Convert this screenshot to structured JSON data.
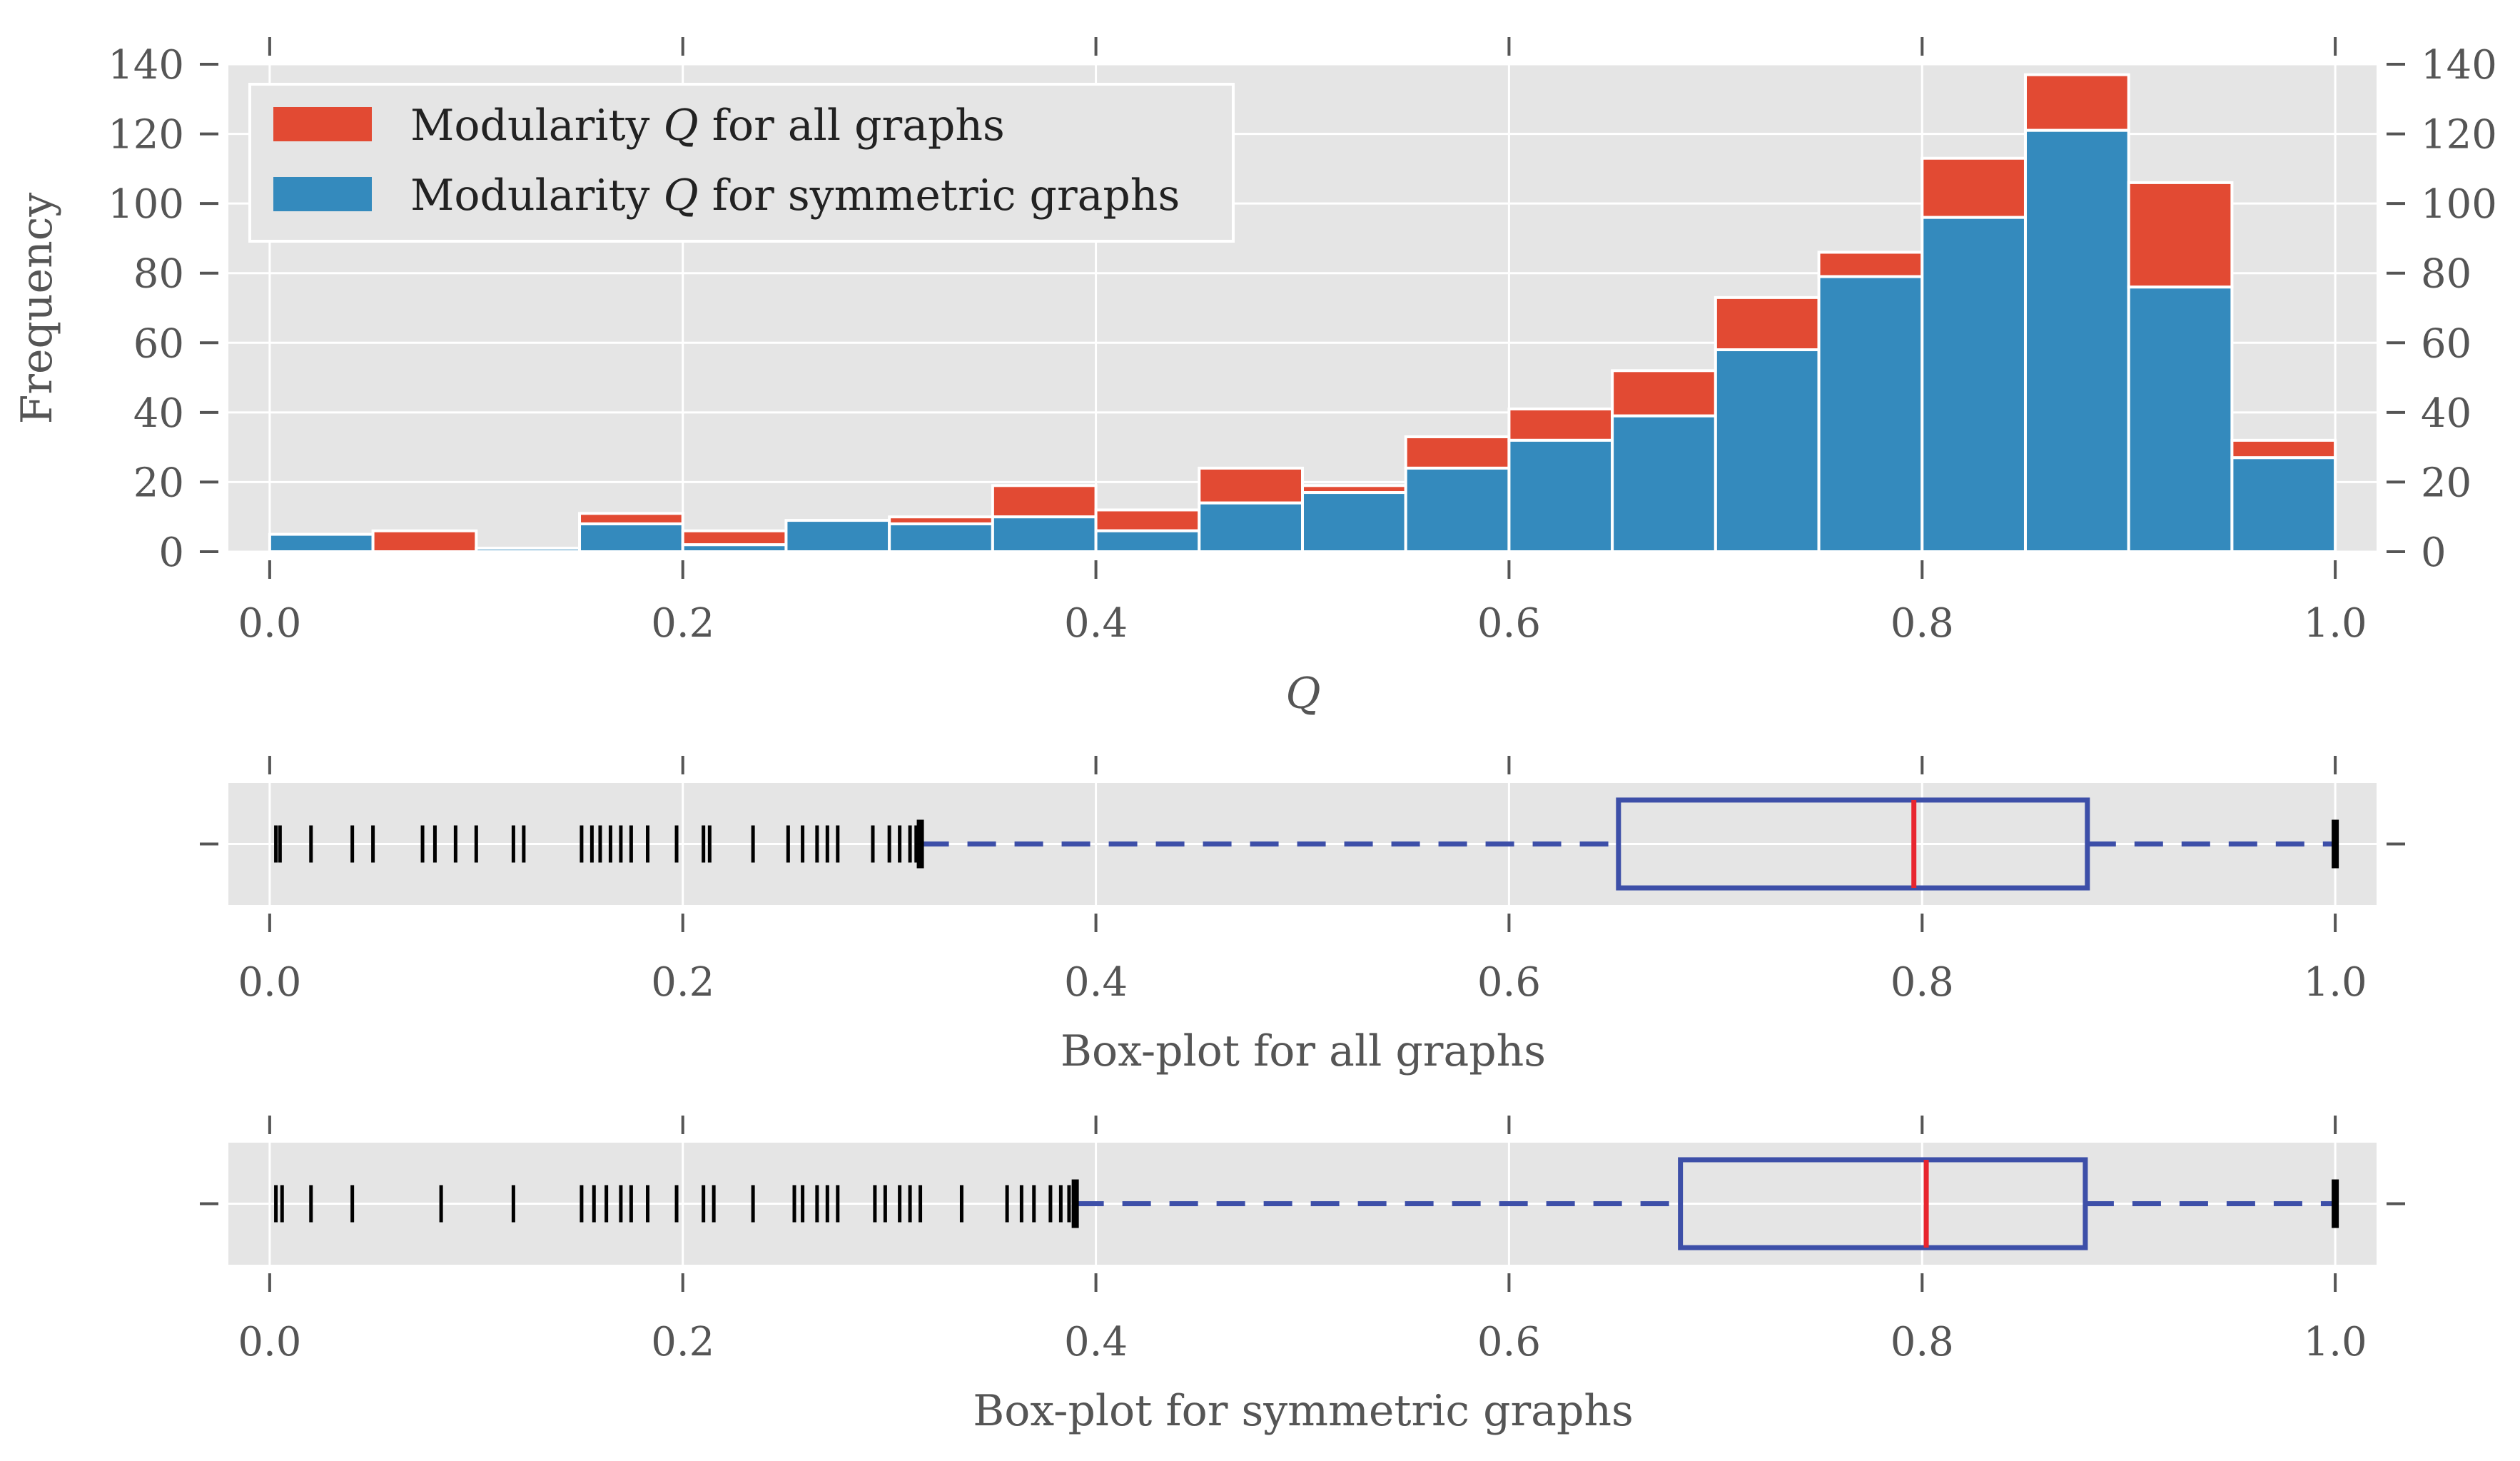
{
  "chart_data": [
    {
      "type": "bar",
      "subtype": "stacked-histogram",
      "xlabel": "Q",
      "ylabel": "Frequency",
      "xlim": [
        -0.02,
        1.02
      ],
      "ylim": [
        0,
        140
      ],
      "grid": true,
      "right_axis_ticks": true,
      "legend_placement": "top-left",
      "bin_edges": [
        0.0,
        0.05,
        0.1,
        0.15,
        0.2,
        0.25,
        0.3,
        0.35,
        0.4,
        0.45,
        0.5,
        0.55,
        0.6,
        0.65,
        0.7,
        0.75,
        0.8,
        0.85,
        0.9,
        0.95,
        1.0
      ],
      "series": [
        {
          "name": "Modularity Q for symmetric graphs",
          "label_prefix": "Modularity ",
          "label_var": "Q",
          "label_suffix": " for symmetric graphs",
          "color": "#348ABD",
          "values": [
            5,
            0,
            1,
            8,
            2,
            9,
            8,
            10,
            6,
            14,
            17,
            24,
            32,
            39,
            58,
            79,
            96,
            121,
            76,
            27
          ]
        },
        {
          "name": "Modularity Q for all graphs",
          "label_prefix": "Modularity ",
          "label_var": "Q",
          "label_suffix": " for all graphs",
          "color": "#E24A33",
          "values": [
            5,
            6,
            1,
            11,
            6,
            9,
            10,
            19,
            12,
            24,
            19,
            33,
            41,
            52,
            73,
            86,
            113,
            137,
            106,
            32
          ]
        }
      ],
      "xticks": [
        "0.0",
        "0.2",
        "0.4",
        "0.6",
        "0.8",
        "1.0"
      ],
      "yticks": [
        "0",
        "20",
        "40",
        "60",
        "80",
        "100",
        "120",
        "140"
      ]
    },
    {
      "type": "boxplot",
      "xlabel": "Box-plot for all graphs",
      "xlim": [
        -0.02,
        1.02
      ],
      "xticks": [
        "0.0",
        "0.2",
        "0.4",
        "0.6",
        "0.8",
        "1.0"
      ],
      "whisker_low": 0.315,
      "q1": 0.653,
      "median": 0.796,
      "q3": 0.88,
      "whisker_high": 1.0,
      "outliers": [
        0.003,
        0.005,
        0.02,
        0.04,
        0.05,
        0.074,
        0.08,
        0.09,
        0.1,
        0.118,
        0.123,
        0.151,
        0.156,
        0.16,
        0.165,
        0.17,
        0.175,
        0.183,
        0.197,
        0.21,
        0.213,
        0.234,
        0.251,
        0.258,
        0.265,
        0.27,
        0.275,
        0.292,
        0.3,
        0.305,
        0.31,
        0.313
      ],
      "box_color": "#3D4FA8",
      "median_color": "#E8262F"
    },
    {
      "type": "boxplot",
      "xlabel": "Box-plot for symmetric graphs",
      "xlim": [
        -0.02,
        1.02
      ],
      "xticks": [
        "0.0",
        "0.2",
        "0.4",
        "0.6",
        "0.8",
        "1.0"
      ],
      "whisker_low": 0.39,
      "q1": 0.683,
      "median": 0.802,
      "q3": 0.879,
      "whisker_high": 1.0,
      "outliers": [
        0.003,
        0.006,
        0.02,
        0.04,
        0.083,
        0.118,
        0.151,
        0.157,
        0.163,
        0.17,
        0.175,
        0.183,
        0.197,
        0.21,
        0.215,
        0.234,
        0.254,
        0.258,
        0.265,
        0.27,
        0.275,
        0.293,
        0.298,
        0.305,
        0.31,
        0.315,
        0.335,
        0.357,
        0.364,
        0.37,
        0.378,
        0.383,
        0.387
      ],
      "box_color": "#3D4FA8",
      "median_color": "#E8262F"
    }
  ]
}
